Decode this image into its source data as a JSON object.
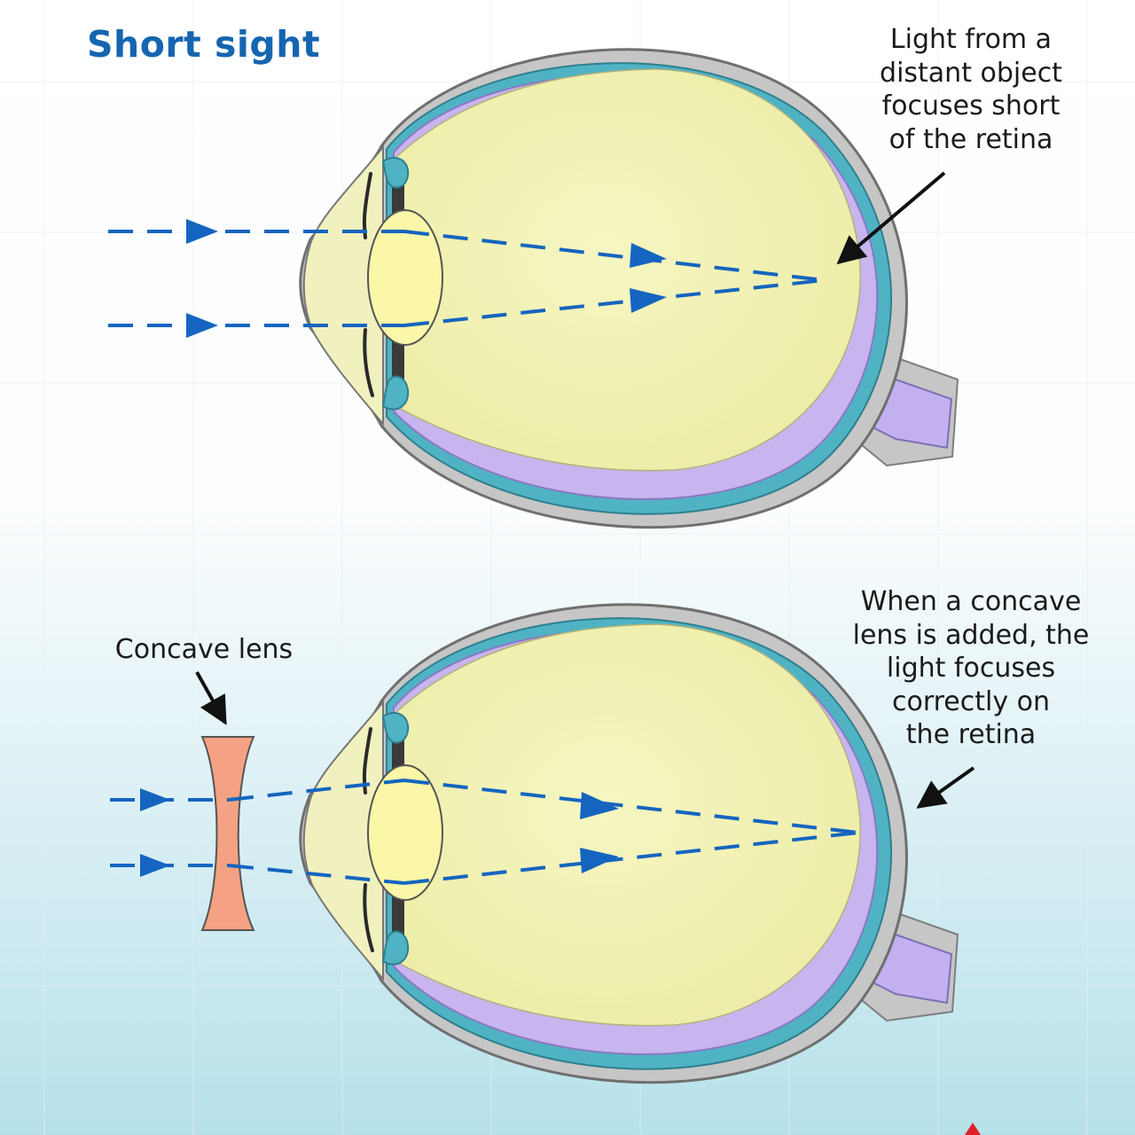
{
  "title": "Short sight",
  "annotations": {
    "top": [
      "Light from a",
      "distant object",
      "focuses short",
      "of the retina"
    ],
    "bottom": [
      "When a concave",
      "lens is added, the",
      "light focuses",
      "correctly on",
      "the retina"
    ],
    "lens": "Concave lens"
  },
  "colors": {
    "title": "#1565b0",
    "ray": "#1565c0",
    "sclera": "#c4c4c4",
    "choroid": "#4fb3c4",
    "retina": "#c8b4ee",
    "vitreous": "#f3f3b6",
    "eye_lens": "#fbf7a8",
    "concave_lens": "#f4a283",
    "bg_top": "#ffffff",
    "bg_bottom": "#b7e1ea"
  }
}
